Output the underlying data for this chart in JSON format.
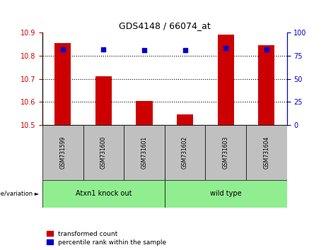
{
  "title": "GDS4148 / 66074_at",
  "samples": [
    "GSM731599",
    "GSM731600",
    "GSM731601",
    "GSM731602",
    "GSM731603",
    "GSM731604"
  ],
  "red_values": [
    10.855,
    10.71,
    10.605,
    10.545,
    10.89,
    10.845
  ],
  "blue_values": [
    82,
    82,
    81,
    81,
    83,
    82
  ],
  "ylim_left": [
    10.5,
    10.9
  ],
  "ylim_right": [
    0,
    100
  ],
  "yticks_left": [
    10.5,
    10.6,
    10.7,
    10.8,
    10.9
  ],
  "yticks_right": [
    0,
    25,
    50,
    75,
    100
  ],
  "hlines": [
    10.6,
    10.7,
    10.8
  ],
  "group_labels": [
    "Atxn1 knock out",
    "wild type"
  ],
  "group_colors": [
    "#90EE90",
    "#90EE90"
  ],
  "group_splits": [
    0,
    3,
    6
  ],
  "red_color": "#CC0000",
  "blue_color": "#0000CC",
  "bg_color": "#C0C0C0",
  "genotype_label": "genotype/variation",
  "legend_red": "transformed count",
  "legend_blue": "percentile rank within the sample",
  "tick_label_color_left": "#CC0000",
  "tick_label_color_right": "#0000CC"
}
